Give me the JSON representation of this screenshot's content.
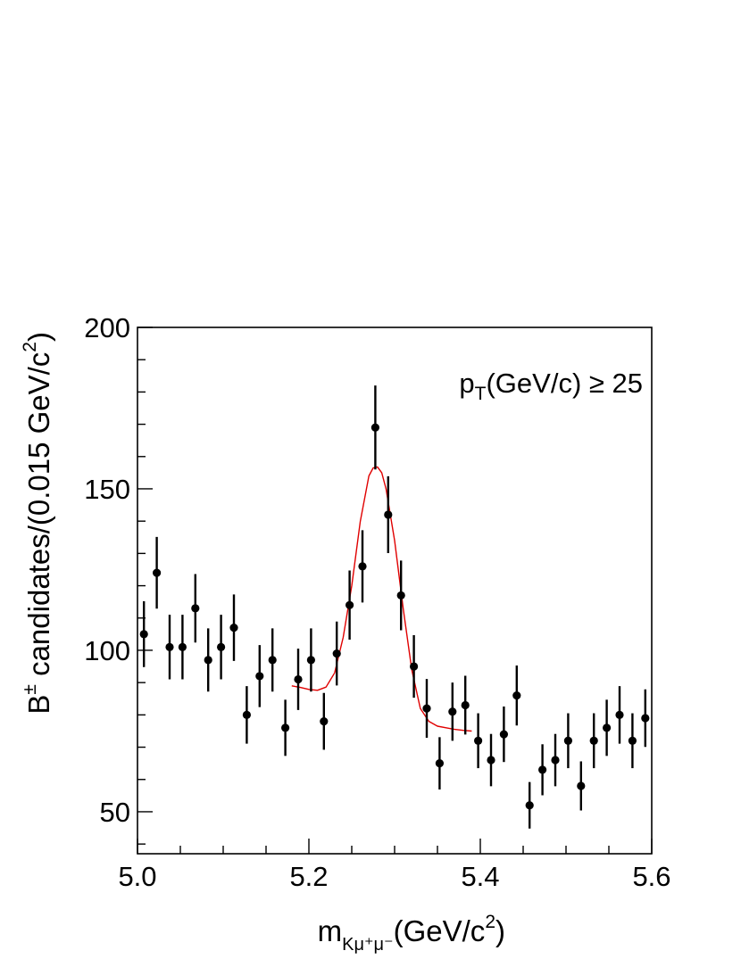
{
  "chart_data": {
    "type": "scatter",
    "xlabel": "m",
    "xlabel_sub": "Kμ⁺μ⁻",
    "xlabel_unit": "(GeV/c",
    "xlabel_unit_sup": "2",
    "xlabel_unit_close": ")",
    "ylabel": "B",
    "ylabel_sup": "±",
    "ylabel_rest": " candidates/(0.015 GeV/c",
    "ylabel_rest_sup": "2",
    "ylabel_rest_close": ")",
    "annotation": {
      "main": "p",
      "sub": "T",
      "rest": "(GeV/c) ≥ 25"
    },
    "xlim": [
      5.0,
      5.6
    ],
    "ylim": [
      37,
      200
    ],
    "x_ticks": [
      "5.0",
      "5.2",
      "5.4",
      "5.6"
    ],
    "y_ticks": [
      "50",
      "100",
      "150",
      "200"
    ],
    "grid": false,
    "series": [
      {
        "kind": "points",
        "color": "#000000",
        "x": [
          5.0075,
          5.0225,
          5.0375,
          5.0525,
          5.0675,
          5.0825,
          5.0975,
          5.1125,
          5.1275,
          5.1425,
          5.1575,
          5.1725,
          5.1875,
          5.2025,
          5.2175,
          5.2325,
          5.2475,
          5.2625,
          5.2775,
          5.2925,
          5.3075,
          5.3225,
          5.3375,
          5.3525,
          5.3675,
          5.3825,
          5.3975,
          5.4125,
          5.4275,
          5.4425,
          5.4575,
          5.4725,
          5.4875,
          5.5025,
          5.5175,
          5.5325,
          5.5475,
          5.5625,
          5.5775,
          5.5925
        ],
        "y": [
          105,
          124,
          101,
          101,
          113,
          97,
          101,
          107,
          80,
          92,
          97,
          76,
          91,
          97,
          78,
          99,
          114,
          126,
          169,
          142,
          117,
          95,
          82,
          65,
          81,
          83,
          72,
          66,
          74,
          86,
          52,
          63,
          66,
          72,
          58,
          72,
          76,
          80,
          72,
          79
        ],
        "yerr": [
          10.2,
          11.1,
          10,
          10,
          10.6,
          9.8,
          10,
          10.3,
          8.9,
          9.6,
          9.8,
          8.7,
          9.5,
          9.8,
          8.8,
          9.9,
          10.7,
          11.2,
          13,
          11.9,
          10.8,
          9.7,
          9.1,
          8.1,
          9,
          9.1,
          8.5,
          8.1,
          8.6,
          9.3,
          7.2,
          7.9,
          8.1,
          8.5,
          7.6,
          8.5,
          8.7,
          8.9,
          8.5,
          8.9
        ]
      },
      {
        "kind": "fit",
        "color": "#e00000",
        "x": [
          5.18,
          5.19,
          5.2,
          5.21,
          5.22,
          5.23,
          5.24,
          5.25,
          5.26,
          5.27,
          5.275,
          5.28,
          5.285,
          5.29,
          5.3,
          5.31,
          5.32,
          5.33,
          5.34,
          5.35,
          5.36,
          5.37,
          5.38,
          5.39
        ],
        "y": [
          89,
          88.5,
          87.9,
          87.6,
          88.6,
          93,
          104,
          120,
          140,
          154,
          156.5,
          156.8,
          155,
          150,
          134,
          113,
          94,
          82,
          78,
          76.5,
          76,
          75.5,
          75.2,
          75
        ]
      }
    ]
  }
}
